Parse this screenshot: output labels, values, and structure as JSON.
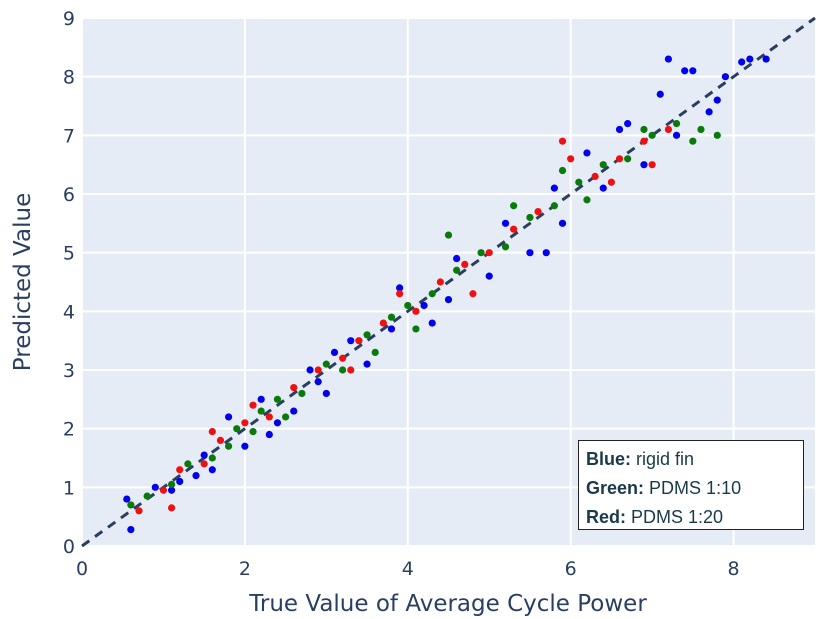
{
  "chart_data": {
    "type": "scatter",
    "title": "",
    "xlabel": "True Value of Average Cycle Power",
    "ylabel": "Predicted Value",
    "xlim": [
      0,
      9
    ],
    "ylim": [
      0,
      9
    ],
    "x_ticks": [
      "0",
      "2",
      "4",
      "6",
      "8"
    ],
    "y_ticks": [
      "0",
      "1",
      "2",
      "3",
      "4",
      "5",
      "6",
      "7",
      "8",
      "9"
    ],
    "grid": true,
    "reference_line": {
      "style": "dashed",
      "color": "#2a3f5f",
      "x": [
        0,
        9
      ],
      "y": [
        0,
        9
      ]
    },
    "legend": {
      "placement": "bottom-right",
      "entries": [
        {
          "key": "Blue:",
          "label": "rigid fin",
          "color": "#0000ee"
        },
        {
          "key": "Green:",
          "label": "PDMS 1:10",
          "color": "#0a7a0a"
        },
        {
          "key": "Red:",
          "label": "PDMS 1:20",
          "color": "#ee1111"
        }
      ]
    },
    "series": [
      {
        "name": "rigid fin",
        "color": "#0000ee",
        "points": [
          [
            0.6,
            0.28
          ],
          [
            0.55,
            0.8
          ],
          [
            0.9,
            1.0
          ],
          [
            1.2,
            1.1
          ],
          [
            1.5,
            1.55
          ],
          [
            1.6,
            1.3
          ],
          [
            1.8,
            2.2
          ],
          [
            2.0,
            1.7
          ],
          [
            2.2,
            2.5
          ],
          [
            2.3,
            1.9
          ],
          [
            2.6,
            2.3
          ],
          [
            2.8,
            3.0
          ],
          [
            3.0,
            2.6
          ],
          [
            3.3,
            3.5
          ],
          [
            3.5,
            3.1
          ],
          [
            3.8,
            3.7
          ],
          [
            3.9,
            4.4
          ],
          [
            4.2,
            4.1
          ],
          [
            4.5,
            4.2
          ],
          [
            4.6,
            4.9
          ],
          [
            5.0,
            4.6
          ],
          [
            5.2,
            5.5
          ],
          [
            5.5,
            5.0
          ],
          [
            5.8,
            6.1
          ],
          [
            5.9,
            5.5
          ],
          [
            6.2,
            6.7
          ],
          [
            6.4,
            6.1
          ],
          [
            6.7,
            7.2
          ],
          [
            6.9,
            6.5
          ],
          [
            7.1,
            7.7
          ],
          [
            7.3,
            7.0
          ],
          [
            7.5,
            8.1
          ],
          [
            7.7,
            7.4
          ],
          [
            7.9,
            8.0
          ],
          [
            8.1,
            8.25
          ],
          [
            8.2,
            8.3
          ],
          [
            7.2,
            8.3
          ],
          [
            7.4,
            8.1
          ],
          [
            5.7,
            5.0
          ],
          [
            4.3,
            3.8
          ],
          [
            2.4,
            2.1
          ],
          [
            1.4,
            1.2
          ],
          [
            3.1,
            3.3
          ],
          [
            6.6,
            7.1
          ],
          [
            7.8,
            7.6
          ],
          [
            8.4,
            8.3
          ],
          [
            2.9,
            2.8
          ],
          [
            1.1,
            0.95
          ]
        ]
      },
      {
        "name": "PDMS 1:10",
        "color": "#0a7a0a",
        "points": [
          [
            0.6,
            0.7
          ],
          [
            0.8,
            0.85
          ],
          [
            1.1,
            1.05
          ],
          [
            1.3,
            1.4
          ],
          [
            1.6,
            1.5
          ],
          [
            1.9,
            2.0
          ],
          [
            2.1,
            1.95
          ],
          [
            2.4,
            2.5
          ],
          [
            2.7,
            2.6
          ],
          [
            3.0,
            3.1
          ],
          [
            3.2,
            3.0
          ],
          [
            3.5,
            3.6
          ],
          [
            3.8,
            3.9
          ],
          [
            4.0,
            4.1
          ],
          [
            4.3,
            4.3
          ],
          [
            4.6,
            4.7
          ],
          [
            4.9,
            5.0
          ],
          [
            5.2,
            5.1
          ],
          [
            5.5,
            5.6
          ],
          [
            5.8,
            5.8
          ],
          [
            6.1,
            6.2
          ],
          [
            6.4,
            6.5
          ],
          [
            6.7,
            6.6
          ],
          [
            7.0,
            7.0
          ],
          [
            7.3,
            7.2
          ],
          [
            7.6,
            7.1
          ],
          [
            7.8,
            7.0
          ],
          [
            6.9,
            7.1
          ],
          [
            5.3,
            5.8
          ],
          [
            4.5,
            5.3
          ],
          [
            2.5,
            2.2
          ],
          [
            1.8,
            1.7
          ],
          [
            3.6,
            3.3
          ],
          [
            6.2,
            5.9
          ],
          [
            7.5,
            6.9
          ],
          [
            4.1,
            3.7
          ],
          [
            2.2,
            2.3
          ],
          [
            5.9,
            6.4
          ]
        ]
      },
      {
        "name": "PDMS 1:20",
        "color": "#ee1111",
        "points": [
          [
            0.7,
            0.6
          ],
          [
            1.0,
            0.95
          ],
          [
            1.2,
            1.3
          ],
          [
            1.5,
            1.4
          ],
          [
            1.7,
            1.8
          ],
          [
            2.0,
            2.1
          ],
          [
            2.3,
            2.2
          ],
          [
            2.6,
            2.7
          ],
          [
            2.9,
            3.0
          ],
          [
            3.2,
            3.2
          ],
          [
            3.4,
            3.5
          ],
          [
            3.7,
            3.8
          ],
          [
            4.1,
            4.0
          ],
          [
            4.4,
            4.5
          ],
          [
            4.7,
            4.8
          ],
          [
            5.0,
            5.0
          ],
          [
            5.3,
            5.4
          ],
          [
            5.6,
            5.7
          ],
          [
            6.0,
            6.6
          ],
          [
            6.3,
            6.3
          ],
          [
            6.6,
            6.6
          ],
          [
            6.9,
            6.9
          ],
          [
            7.2,
            7.1
          ],
          [
            5.9,
            6.9
          ],
          [
            3.3,
            3.0
          ],
          [
            1.1,
            0.65
          ],
          [
            6.5,
            6.2
          ],
          [
            4.8,
            4.3
          ],
          [
            2.1,
            2.4
          ],
          [
            1.6,
            1.95
          ],
          [
            7.0,
            6.5
          ],
          [
            3.9,
            4.3
          ]
        ]
      }
    ]
  }
}
